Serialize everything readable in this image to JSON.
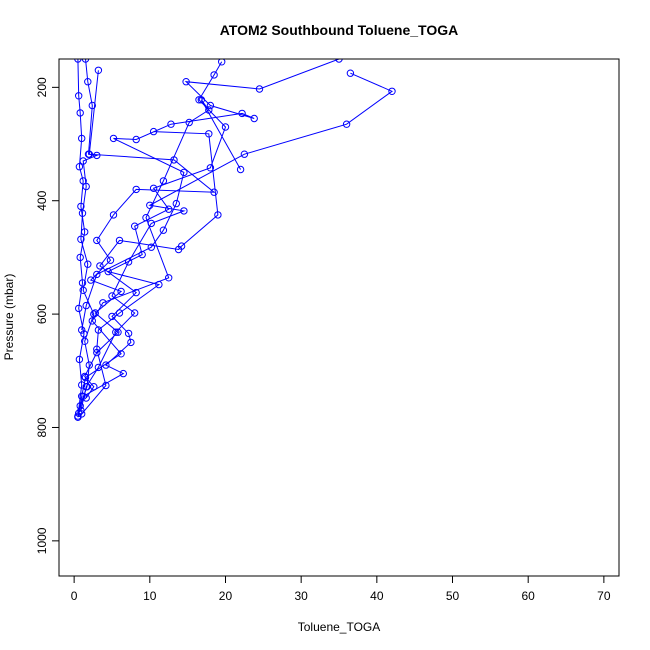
{
  "chart_data": {
    "type": "line",
    "title": "ATOM2 Southbound Toluene_TOGA",
    "xlabel": "Toluene_TOGA",
    "ylabel": "Pressure (mbar)",
    "xlim": [
      -2,
      72
    ],
    "ylim": [
      1062,
      150
    ],
    "y_reversed": true,
    "grid": false,
    "legend": "none",
    "line_color": "#0000ff",
    "marker": "open-circle",
    "x_ticks": [
      0,
      10,
      20,
      30,
      40,
      50,
      60,
      70
    ],
    "y_ticks": [
      200,
      400,
      600,
      800,
      1000
    ],
    "series": [
      {
        "points": [
          [
            0.5,
            150
          ],
          [
            0.6,
            215
          ],
          [
            0.8,
            245
          ],
          [
            1.0,
            290
          ],
          [
            0.7,
            340
          ],
          [
            1.2,
            365
          ],
          [
            0.9,
            410
          ],
          [
            1.4,
            455
          ],
          [
            0.8,
            500
          ],
          [
            1.1,
            545
          ],
          [
            0.6,
            590
          ],
          [
            1.3,
            635
          ],
          [
            0.7,
            680
          ],
          [
            1.0,
            725
          ],
          [
            0.5,
            780
          ]
        ]
      },
      {
        "points": [
          [
            1.5,
            150
          ],
          [
            1.8,
            190
          ],
          [
            2.4,
            232
          ],
          [
            1.9,
            318
          ],
          [
            3.0,
            320
          ],
          [
            1.2,
            330
          ],
          [
            1.6,
            375
          ],
          [
            1.1,
            422
          ],
          [
            0.9,
            468
          ],
          [
            1.8,
            512
          ],
          [
            1.2,
            558
          ],
          [
            2.6,
            600
          ],
          [
            1.4,
            648
          ],
          [
            2.0,
            690
          ],
          [
            1.7,
            728
          ],
          [
            0.8,
            762
          ]
        ]
      },
      {
        "points": [
          [
            3.2,
            170
          ],
          [
            2.0,
            318
          ],
          [
            13.2,
            328
          ],
          [
            18.5,
            385
          ],
          [
            8.2,
            380
          ],
          [
            5.2,
            425
          ],
          [
            3.0,
            470
          ],
          [
            4.8,
            505
          ],
          [
            2.2,
            540
          ],
          [
            6.2,
            560
          ],
          [
            2.8,
            598
          ],
          [
            5.8,
            632
          ],
          [
            3.0,
            668
          ],
          [
            1.4,
            710
          ],
          [
            2.6,
            728
          ],
          [
            1.6,
            748
          ]
        ]
      },
      {
        "points": [
          [
            19.5,
            155
          ],
          [
            18.5,
            178
          ],
          [
            16.5,
            222
          ],
          [
            20.0,
            270
          ],
          [
            18.0,
            342
          ],
          [
            10.5,
            378
          ],
          [
            12.5,
            415
          ],
          [
            8.0,
            445
          ],
          [
            9.0,
            495
          ],
          [
            4.5,
            525
          ],
          [
            11.2,
            548
          ],
          [
            6.0,
            598
          ],
          [
            3.2,
            628
          ],
          [
            3.0,
            662
          ],
          [
            4.2,
            726
          ],
          [
            1.0,
            776
          ]
        ]
      },
      {
        "points": [
          [
            36.5,
            175
          ],
          [
            42.0,
            207
          ],
          [
            36.0,
            265
          ],
          [
            22.5,
            318
          ],
          [
            10.0,
            408
          ],
          [
            14.5,
            418
          ],
          [
            10.2,
            440
          ],
          [
            7.2,
            508
          ],
          [
            5.0,
            568
          ],
          [
            8.0,
            598
          ],
          [
            5.5,
            632
          ],
          [
            3.2,
            694
          ],
          [
            1.6,
            728
          ],
          [
            0.9,
            770
          ]
        ]
      },
      {
        "points": [
          [
            35.0,
            150
          ],
          [
            24.5,
            203
          ],
          [
            14.8,
            190
          ],
          [
            18.0,
            232
          ],
          [
            23.8,
            255
          ],
          [
            22.2,
            246
          ],
          [
            12.8,
            265
          ],
          [
            8.2,
            292
          ],
          [
            5.2,
            290
          ],
          [
            14.5,
            350
          ],
          [
            13.5,
            405
          ],
          [
            11.8,
            452
          ],
          [
            10.2,
            482
          ],
          [
            3.0,
            530
          ],
          [
            1.6,
            585
          ],
          [
            1.0,
            628
          ]
        ]
      },
      {
        "points": [
          [
            10.5,
            278
          ],
          [
            17.8,
            282
          ],
          [
            19.0,
            425
          ],
          [
            14.2,
            480
          ],
          [
            13.8,
            486
          ],
          [
            6.0,
            470
          ],
          [
            3.4,
            515
          ],
          [
            8.2,
            562
          ],
          [
            5.0,
            604
          ],
          [
            7.2,
            634
          ],
          [
            7.5,
            650
          ],
          [
            4.2,
            690
          ],
          [
            6.5,
            705
          ],
          [
            1.2,
            745
          ],
          [
            0.5,
            782
          ]
        ]
      },
      {
        "points": [
          [
            22.0,
            345
          ],
          [
            16.8,
            222
          ],
          [
            17.8,
            240
          ],
          [
            15.2,
            262
          ],
          [
            11.8,
            365
          ],
          [
            9.5,
            430
          ],
          [
            12.5,
            536
          ],
          [
            3.8,
            580
          ],
          [
            2.4,
            612
          ],
          [
            6.2,
            670
          ],
          [
            1.5,
            712
          ],
          [
            1.0,
            745
          ],
          [
            0.6,
            775
          ]
        ]
      }
    ]
  }
}
